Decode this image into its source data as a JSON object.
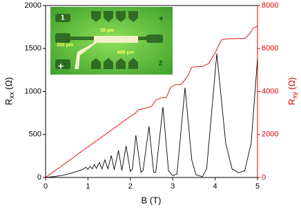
{
  "chart_data": {
    "type": "line",
    "xlabel": "B (T)",
    "ylabel": [
      "R",
      "xx",
      "(Ω)"
    ],
    "y2label": [
      "R",
      "xy",
      "(Ω)"
    ],
    "xlim": [
      0,
      5
    ],
    "xticks": [
      0,
      1,
      2,
      3,
      4,
      5
    ],
    "ylim": [
      0,
      2000
    ],
    "yticks": [
      0,
      500,
      1000,
      1500,
      2000
    ],
    "y2lim": [
      0,
      8000
    ],
    "y2ticks": [
      0,
      2000,
      4000,
      6000,
      8000
    ],
    "y2color": "#e00000",
    "series": [
      {
        "color": "#000000",
        "x": [
          0,
          0.2,
          0.4,
          0.6,
          0.8,
          0.9,
          0.95,
          1.0,
          1.05,
          1.1,
          1.15,
          1.2,
          1.27,
          1.33,
          1.4,
          1.47,
          1.55,
          1.62,
          1.72,
          1.8,
          1.9,
          2.0,
          2.05,
          2.13,
          2.25,
          2.3,
          2.44,
          2.55,
          2.6,
          2.77,
          2.9,
          3.0,
          3.1,
          3.29,
          3.45,
          3.55,
          3.7,
          3.8,
          4.04,
          4.25,
          4.4,
          4.55,
          4.7,
          4.85,
          5.0
        ],
        "values": [
          0,
          10,
          25,
          50,
          80,
          100,
          120,
          95,
          130,
          100,
          150,
          105,
          175,
          100,
          205,
          100,
          255,
          90,
          315,
          80,
          365,
          70,
          100,
          490,
          60,
          80,
          595,
          60,
          60,
          820,
          80,
          20,
          40,
          1045,
          200,
          30,
          10,
          100,
          1440,
          400,
          100,
          55,
          80,
          400,
          1380
        ]
      },
      {
        "color": "#e00000",
        "axis": "y2",
        "x": [
          0,
          0.5,
          1.0,
          1.5,
          1.9,
          2.1,
          2.2,
          2.35,
          2.5,
          2.6,
          2.7,
          2.85,
          2.95,
          3.05,
          3.2,
          3.35,
          3.45,
          3.7,
          3.85,
          4.0,
          4.15,
          4.3,
          4.7,
          4.8,
          4.9,
          5.0
        ],
        "values": [
          0,
          710,
          1420,
          2130,
          2700,
          2960,
          3150,
          3226,
          3300,
          3600,
          3690,
          3720,
          4200,
          4302,
          4330,
          4700,
          5140,
          5163,
          5300,
          5800,
          6400,
          6453,
          6470,
          6650,
          6950,
          7050
        ]
      }
    ],
    "inset_labels": [
      "30 μm",
      "200 μm",
      "600 μm",
      "1",
      "2",
      "+",
      "+"
    ]
  }
}
